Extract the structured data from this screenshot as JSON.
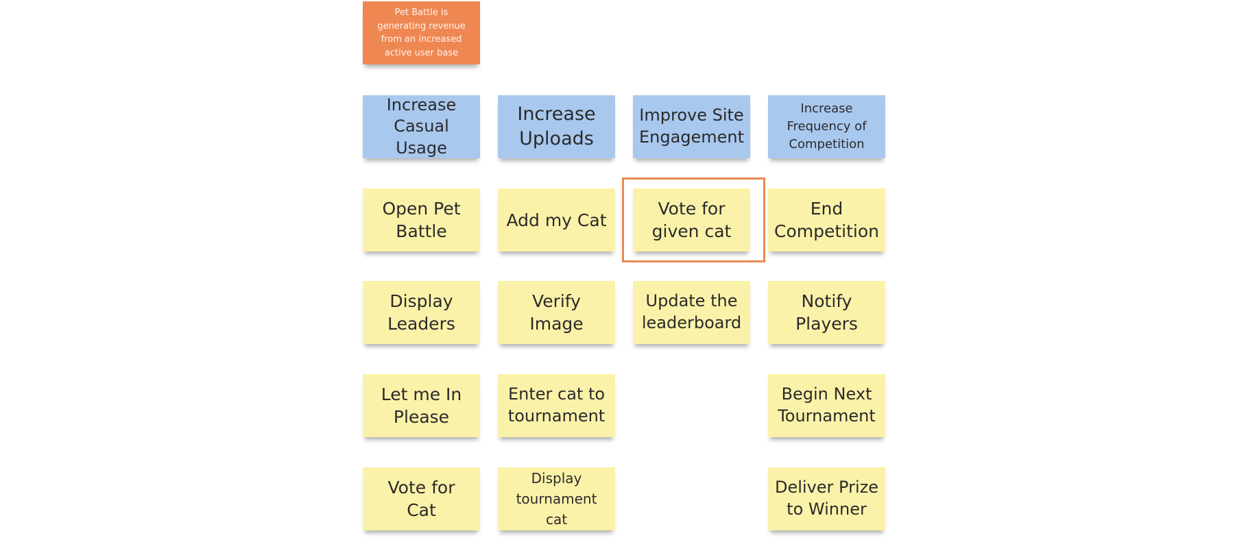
{
  "goal": {
    "text": "Pet Battle is generating revenue from an increased active user base"
  },
  "impacts": [
    "Increase Casual Usage",
    "Increase Uploads",
    "Improve Site Engagement",
    "Increase Frequency of Competition"
  ],
  "deliverables": {
    "column_1": [
      "Open Pet Battle",
      "Display Leaders",
      "Let me In Please",
      "Vote for Cat"
    ],
    "column_2": [
      "Add my Cat",
      "Verify Image",
      "Enter cat to tournament",
      "Display tournament cat"
    ],
    "column_3": [
      "Vote for given cat",
      "Update the leaderboard"
    ],
    "column_4": [
      "End Competition",
      "Notify Players",
      "Begin Next Tournament",
      "Deliver Prize to Winner"
    ]
  },
  "highlighted_item": "Vote for given cat",
  "colors": {
    "goal": "#ef8752",
    "impact": "#a9c8ee",
    "deliverable": "#fbf2a9",
    "highlight_border": "#ec8750"
  }
}
